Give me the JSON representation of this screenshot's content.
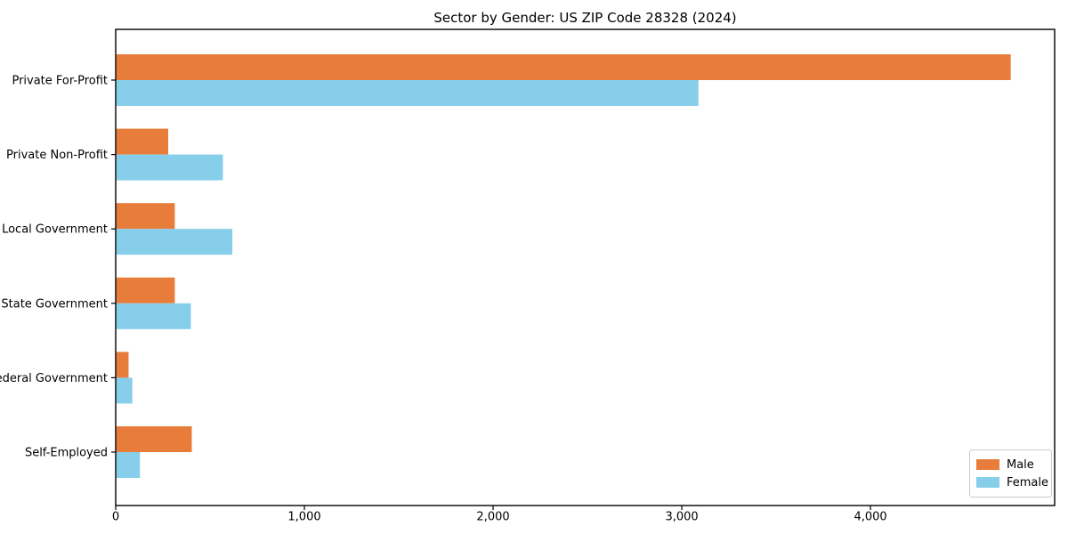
{
  "chart_data": {
    "type": "bar",
    "orientation": "horizontal",
    "title": "Sector by Gender: US ZIP Code 28328 (2024)",
    "xlabel": "",
    "ylabel": "",
    "grid": false,
    "legend_position": "lower right",
    "xlim": [
      0,
      4976
    ],
    "xticks": [
      {
        "value": 0,
        "label": "0"
      },
      {
        "value": 1000,
        "label": "1,000"
      },
      {
        "value": 2000,
        "label": "2,000"
      },
      {
        "value": 3000,
        "label": "3,000"
      },
      {
        "value": 4000,
        "label": "4,000"
      }
    ],
    "categories": [
      "Private For-Profit",
      "Private Non-Profit",
      "Local Government",
      "State Government",
      "Federal Government",
      "Self-Employed"
    ],
    "series": [
      {
        "name": "Male",
        "color": "#e87d3b",
        "values": [
          4740,
          275,
          310,
          310,
          65,
          400
        ]
      },
      {
        "name": "Female",
        "color": "#87ceeb",
        "values": [
          3085,
          565,
          615,
          395,
          85,
          125
        ]
      }
    ],
    "colors": {
      "male": "#e87d3b",
      "female": "#87ceeb",
      "spine": "#000000",
      "text": "#000000",
      "legend_border": "#c9c9c9"
    }
  }
}
